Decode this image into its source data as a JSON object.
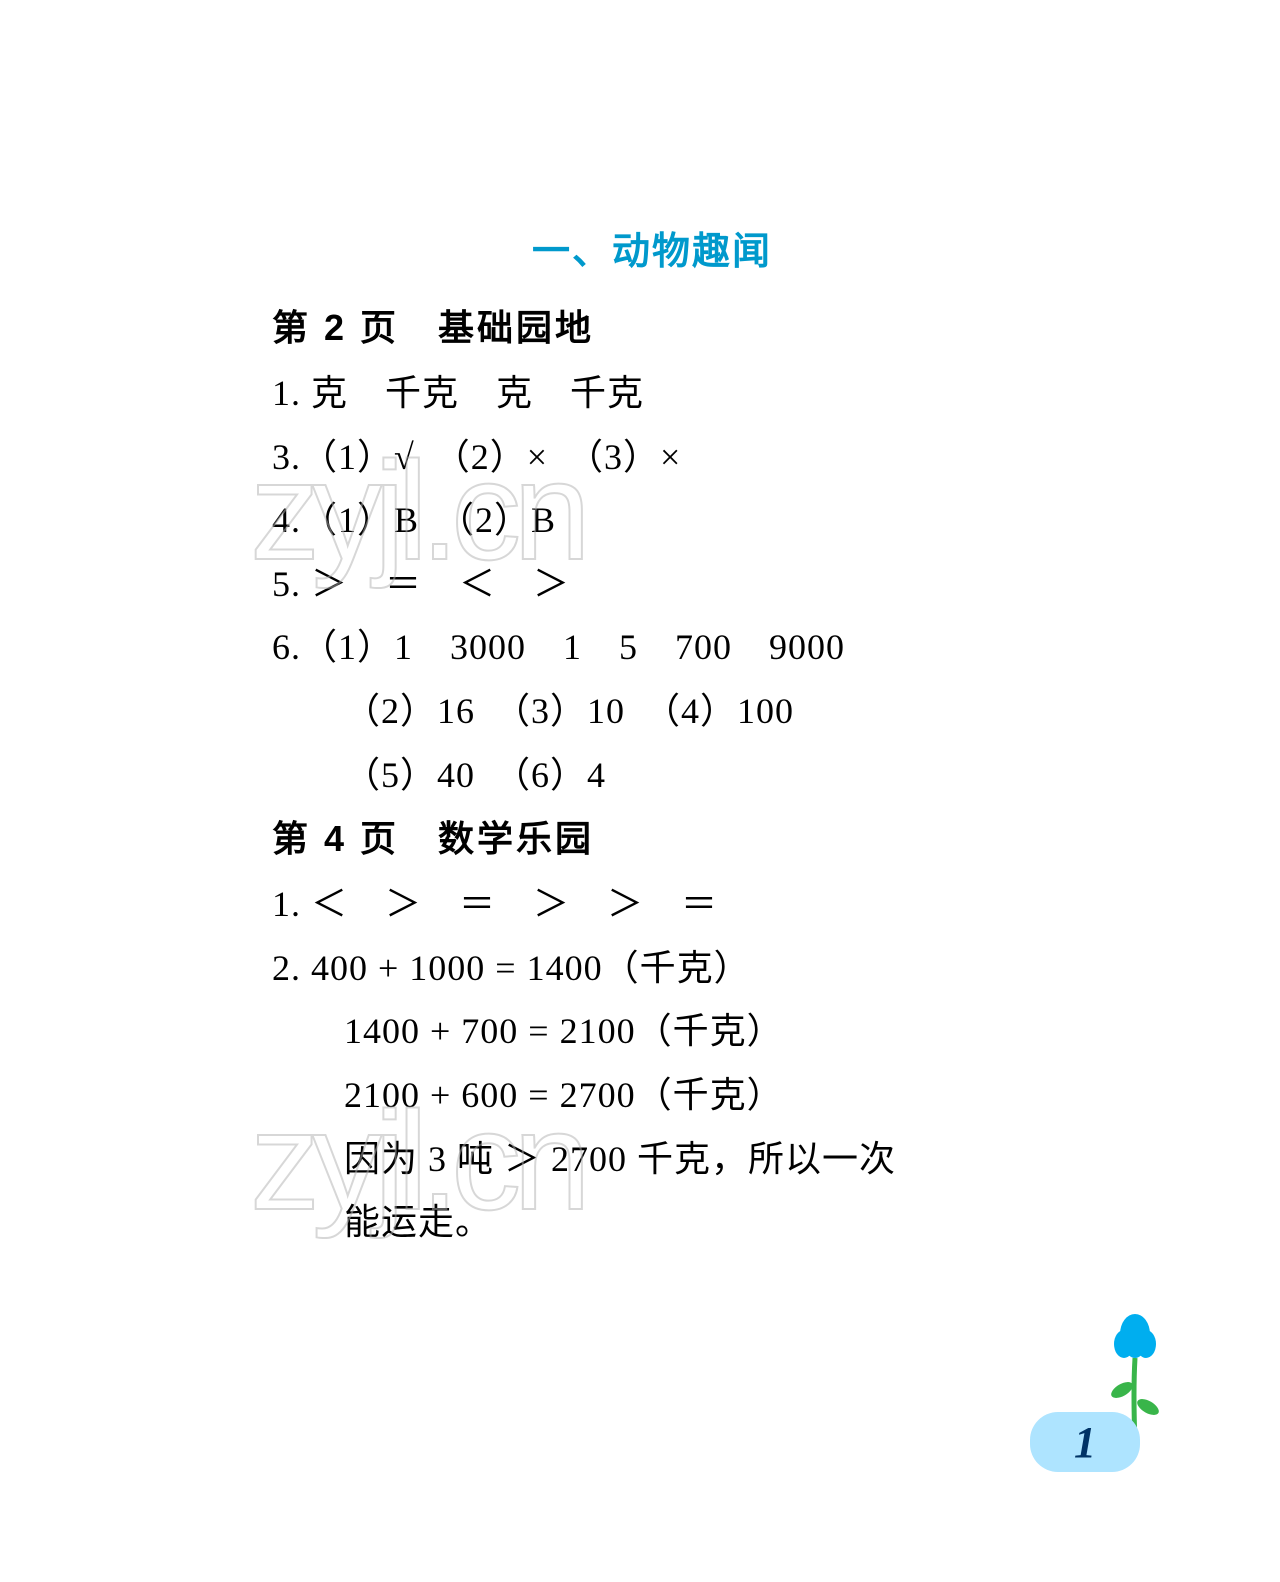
{
  "title": "一、动物趣闻",
  "colors": {
    "title": "#0099cc",
    "text": "#000000",
    "background": "#ffffff",
    "watermark_stroke": "#b0b0b0",
    "page_tab_bg": "#aee4ff",
    "page_num": "#003366",
    "flower_blue": "#00aeef",
    "flower_stem": "#39b54a"
  },
  "typography": {
    "title_fontsize": 38,
    "heading_fontsize": 36,
    "body_fontsize": 36,
    "page_num_fontsize": 44,
    "line_height": 1.6
  },
  "sections": [
    {
      "heading": "第 2 页　基础园地",
      "lines": [
        {
          "text": "1. 克　千克　克　千克",
          "indent": false
        },
        {
          "text": "3.（1）√　（2）×　（3）×",
          "indent": false
        },
        {
          "text": "4.（1）B　（2）B",
          "indent": false
        },
        {
          "text": "5. ＞　＝　＜　＞",
          "indent": false
        },
        {
          "text": "6.（1）1　3000　1　5　700　9000",
          "indent": false
        },
        {
          "text": "（2）16　（3）10　（4）100",
          "indent": true
        },
        {
          "text": "（5）40　（6）4",
          "indent": true
        }
      ]
    },
    {
      "heading": "第 4 页　数学乐园",
      "lines": [
        {
          "text": "1. ＜　＞　＝　＞　＞　＝",
          "indent": false
        },
        {
          "text": "2. 400 + 1000 = 1400（千克）",
          "indent": false
        },
        {
          "text": "1400 + 700 = 2100（千克）",
          "indent": true
        },
        {
          "text": "2100 + 600 = 2700（千克）",
          "indent": true
        },
        {
          "text": "因为 3 吨 ＞ 2700 千克，所以一次",
          "indent": true
        },
        {
          "text": "能运走。",
          "indent": true
        }
      ]
    }
  ],
  "watermark_text": "zyjl.cn",
  "page_number": "1",
  "flower": {
    "petal_color": "#00aeef",
    "stem_color": "#39b54a",
    "leaf_color": "#39b54a"
  }
}
